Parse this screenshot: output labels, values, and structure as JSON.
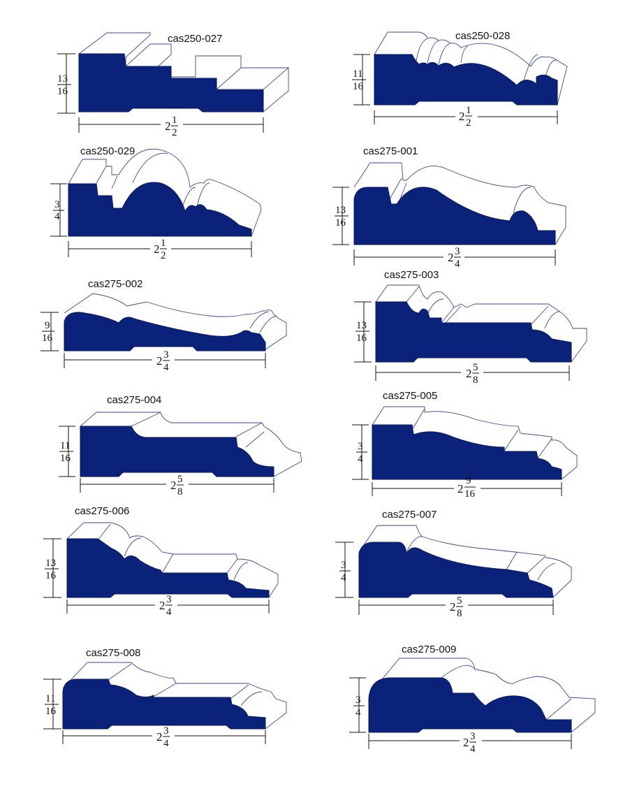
{
  "colors": {
    "profile_fill": "#0a2279",
    "outline": "#3a4a8c",
    "text": "#111111"
  },
  "profiles": [
    {
      "id": "cas250-027",
      "height": {
        "num": "13",
        "den": "16"
      },
      "width": {
        "whole": "2",
        "num": "1",
        "den": "2"
      }
    },
    {
      "id": "cas250-028",
      "height": {
        "num": "11",
        "den": "16"
      },
      "width": {
        "whole": "2",
        "num": "1",
        "den": "2"
      }
    },
    {
      "id": "cas250-029",
      "height": {
        "num": "3",
        "den": "4"
      },
      "width": {
        "whole": "2",
        "num": "1",
        "den": "2"
      }
    },
    {
      "id": "cas275-001",
      "height": {
        "num": "13",
        "den": "16"
      },
      "width": {
        "whole": "2",
        "num": "3",
        "den": "4"
      }
    },
    {
      "id": "cas275-002",
      "height": {
        "num": "9",
        "den": "16"
      },
      "width": {
        "whole": "2",
        "num": "3",
        "den": "4"
      }
    },
    {
      "id": "cas275-003",
      "height": {
        "num": "13",
        "den": "16"
      },
      "width": {
        "whole": "2",
        "num": "5",
        "den": "8"
      }
    },
    {
      "id": "cas275-004",
      "height": {
        "num": "11",
        "den": "16"
      },
      "width": {
        "whole": "2",
        "num": "5",
        "den": "8"
      }
    },
    {
      "id": "cas275-005",
      "height": {
        "num": "3",
        "den": "4"
      },
      "width": {
        "whole": "2",
        "num": "9",
        "den": "16"
      }
    },
    {
      "id": "cas275-006",
      "height": {
        "num": "13",
        "den": "16"
      },
      "width": {
        "whole": "2",
        "num": "3",
        "den": "4"
      }
    },
    {
      "id": "cas275-007",
      "height": {
        "num": "3",
        "den": "4"
      },
      "width": {
        "whole": "2",
        "num": "5",
        "den": "8"
      }
    },
    {
      "id": "cas275-008",
      "height": {
        "num": "11",
        "den": "16"
      },
      "width": {
        "whole": "2",
        "num": "3",
        "den": "4"
      }
    },
    {
      "id": "cas275-009",
      "height": {
        "num": "3",
        "den": "4"
      },
      "width": {
        "whole": "2",
        "num": "3",
        "den": "4"
      }
    }
  ]
}
